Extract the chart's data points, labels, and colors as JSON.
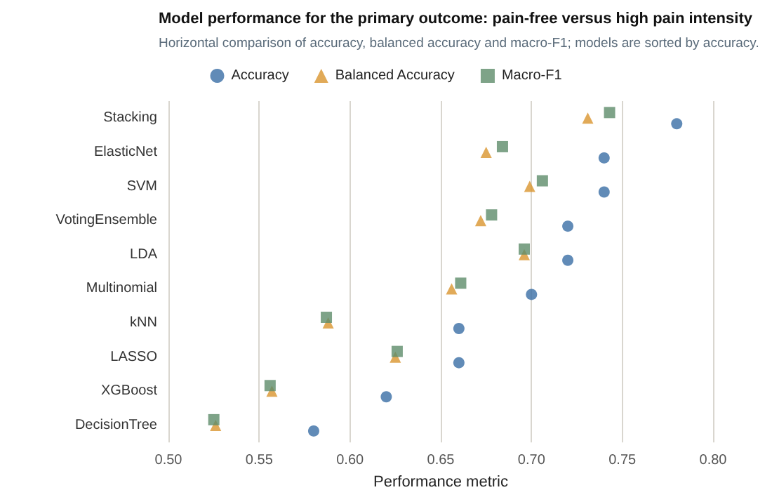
{
  "chart_data": {
    "type": "scatter",
    "title": "Model performance for the primary outcome: pain-free versus high pain intensity",
    "subtitle": "Horizontal comparison of accuracy, balanced accuracy and macro-F1; models are sorted by accuracy.",
    "xlabel": "Performance metric",
    "categories": [
      "Stacking",
      "ElasticNet",
      "SVM",
      "VotingEnsemble",
      "LDA",
      "Multinomial",
      "kNN",
      "LASSO",
      "XGBoost",
      "DecisionTree"
    ],
    "orientation": "horizontal",
    "series": [
      {
        "name": "Accuracy",
        "color": "#3a6ea5",
        "marker": "circle",
        "values": [
          0.78,
          0.74,
          0.74,
          0.72,
          0.72,
          0.7,
          0.66,
          0.66,
          0.62,
          0.58
        ]
      },
      {
        "name": "Balanced Accuracy",
        "color": "#d9952e",
        "marker": "triangle",
        "values": [
          0.731,
          0.675,
          0.699,
          0.672,
          0.696,
          0.656,
          0.588,
          0.625,
          0.557,
          0.526
        ]
      },
      {
        "name": "Macro-F1",
        "color": "#5e8c6a",
        "marker": "square",
        "values": [
          0.743,
          0.684,
          0.706,
          0.678,
          0.696,
          0.661,
          0.587,
          0.626,
          0.556,
          0.525
        ]
      }
    ],
    "xlim": [
      0.5,
      0.8
    ],
    "xticks": [
      {
        "value": 0.5,
        "label": "0.50"
      },
      {
        "value": 0.55,
        "label": "0.55"
      },
      {
        "value": 0.6,
        "label": "0.60"
      },
      {
        "value": 0.65,
        "label": "0.65"
      },
      {
        "value": 0.7,
        "label": "0.70"
      },
      {
        "value": 0.75,
        "label": "0.75"
      },
      {
        "value": 0.8,
        "label": "0.80"
      }
    ],
    "grid": "x",
    "legend": "top"
  }
}
